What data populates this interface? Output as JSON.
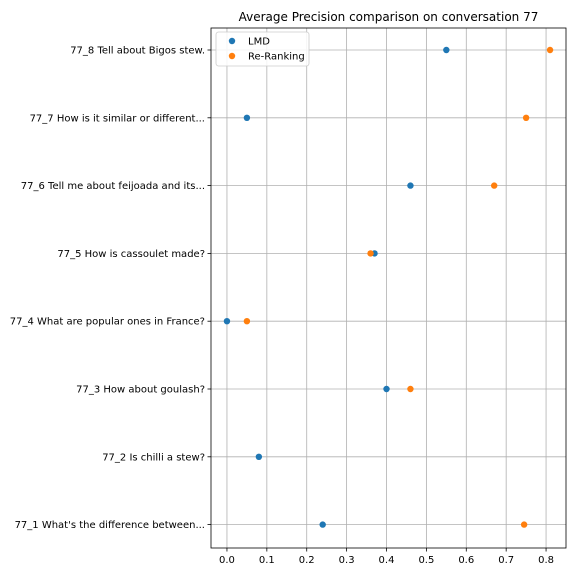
{
  "chart_data": {
    "type": "scatter",
    "title": "Average Precision comparison on conversation 77",
    "xlabel": "",
    "ylabel": "",
    "xlim": [
      -0.04,
      0.85
    ],
    "xticks": [
      0.0,
      0.1,
      0.2,
      0.3,
      0.4,
      0.5,
      0.6,
      0.7,
      0.8
    ],
    "xtick_labels": [
      "0.0",
      "0.1",
      "0.2",
      "0.3",
      "0.4",
      "0.5",
      "0.6",
      "0.7",
      "0.8"
    ],
    "categories": [
      "77_8 Tell about Bigos stew.",
      "77_7 How is it similar or different...",
      "77_6 Tell me about feijoada and its...",
      "77_5 How is cassoulet made?",
      "77_4 What are popular ones in France?",
      "77_3 How about goulash?",
      "77_2 Is chilli a stew?",
      "77_1 What's the difference between..."
    ],
    "series": [
      {
        "name": "LMD",
        "color": "#1f77b4",
        "values": [
          0.55,
          0.05,
          0.46,
          0.37,
          0.0,
          0.4,
          0.08,
          0.24
        ]
      },
      {
        "name": "Re-Ranking",
        "color": "#ff7f0e",
        "values": [
          0.81,
          0.75,
          0.67,
          0.36,
          0.05,
          0.46,
          null,
          0.745
        ]
      }
    ],
    "grid": true,
    "legend_position": "top-left"
  }
}
